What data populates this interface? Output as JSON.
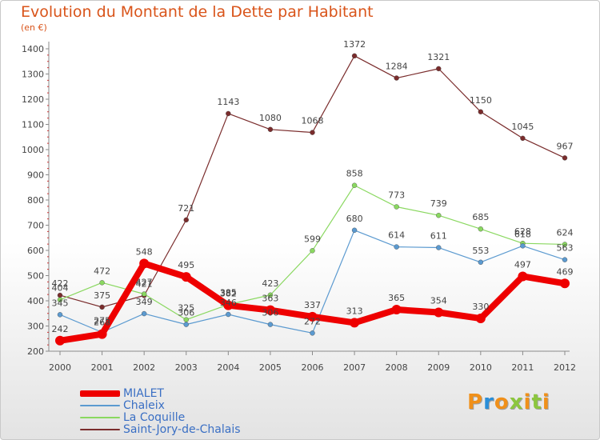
{
  "chart_data": {
    "type": "line",
    "title": "Evolution du Montant de la Dette par Habitant",
    "unit_label": "(en €)",
    "x": [
      "2000",
      "2001",
      "2002",
      "2003",
      "2004",
      "2005",
      "2006",
      "2007",
      "2008",
      "2009",
      "2010",
      "2011",
      "2012"
    ],
    "ylim": [
      200,
      1400
    ],
    "yticks": [
      200,
      300,
      400,
      500,
      600,
      700,
      800,
      900,
      1000,
      1100,
      1200,
      1300,
      1400
    ],
    "grid": false,
    "legend_position": "bottom-left",
    "series": [
      {
        "name": "MIALET",
        "color": "#ee0000",
        "values": [
          242,
          268,
          548,
          495,
          382,
          363,
          337,
          313,
          365,
          354,
          330,
          497,
          469
        ]
      },
      {
        "name": "Chaleix",
        "color": "#5b9ad0",
        "values": [
          345,
          275,
          349,
          306,
          346,
          306,
          272,
          680,
          614,
          611,
          553,
          618,
          563
        ]
      },
      {
        "name": "La Coquille",
        "color": "#8ad860",
        "values": [
          404,
          472,
          427,
          325,
          385,
          423,
          599,
          858,
          773,
          739,
          685,
          628,
          624
        ]
      },
      {
        "name": "Saint-Jory-de-Chalais",
        "color": "#7a2c2c",
        "values": [
          422,
          375,
          421,
          721,
          1143,
          1080,
          1068,
          1372,
          1284,
          1321,
          1150,
          1045,
          967
        ]
      }
    ]
  },
  "branding": {
    "logo_letters": [
      {
        "ch": "P",
        "color": "#f0901a"
      },
      {
        "ch": "r",
        "color": "#2a8ed8"
      },
      {
        "ch": "o",
        "color": "#f0901a"
      },
      {
        "ch": "x",
        "color": "#8cc63f"
      },
      {
        "ch": "i",
        "color": "#f0901a"
      },
      {
        "ch": "t",
        "color": "#8cc63f"
      },
      {
        "ch": "i",
        "color": "#f0901a"
      }
    ]
  }
}
